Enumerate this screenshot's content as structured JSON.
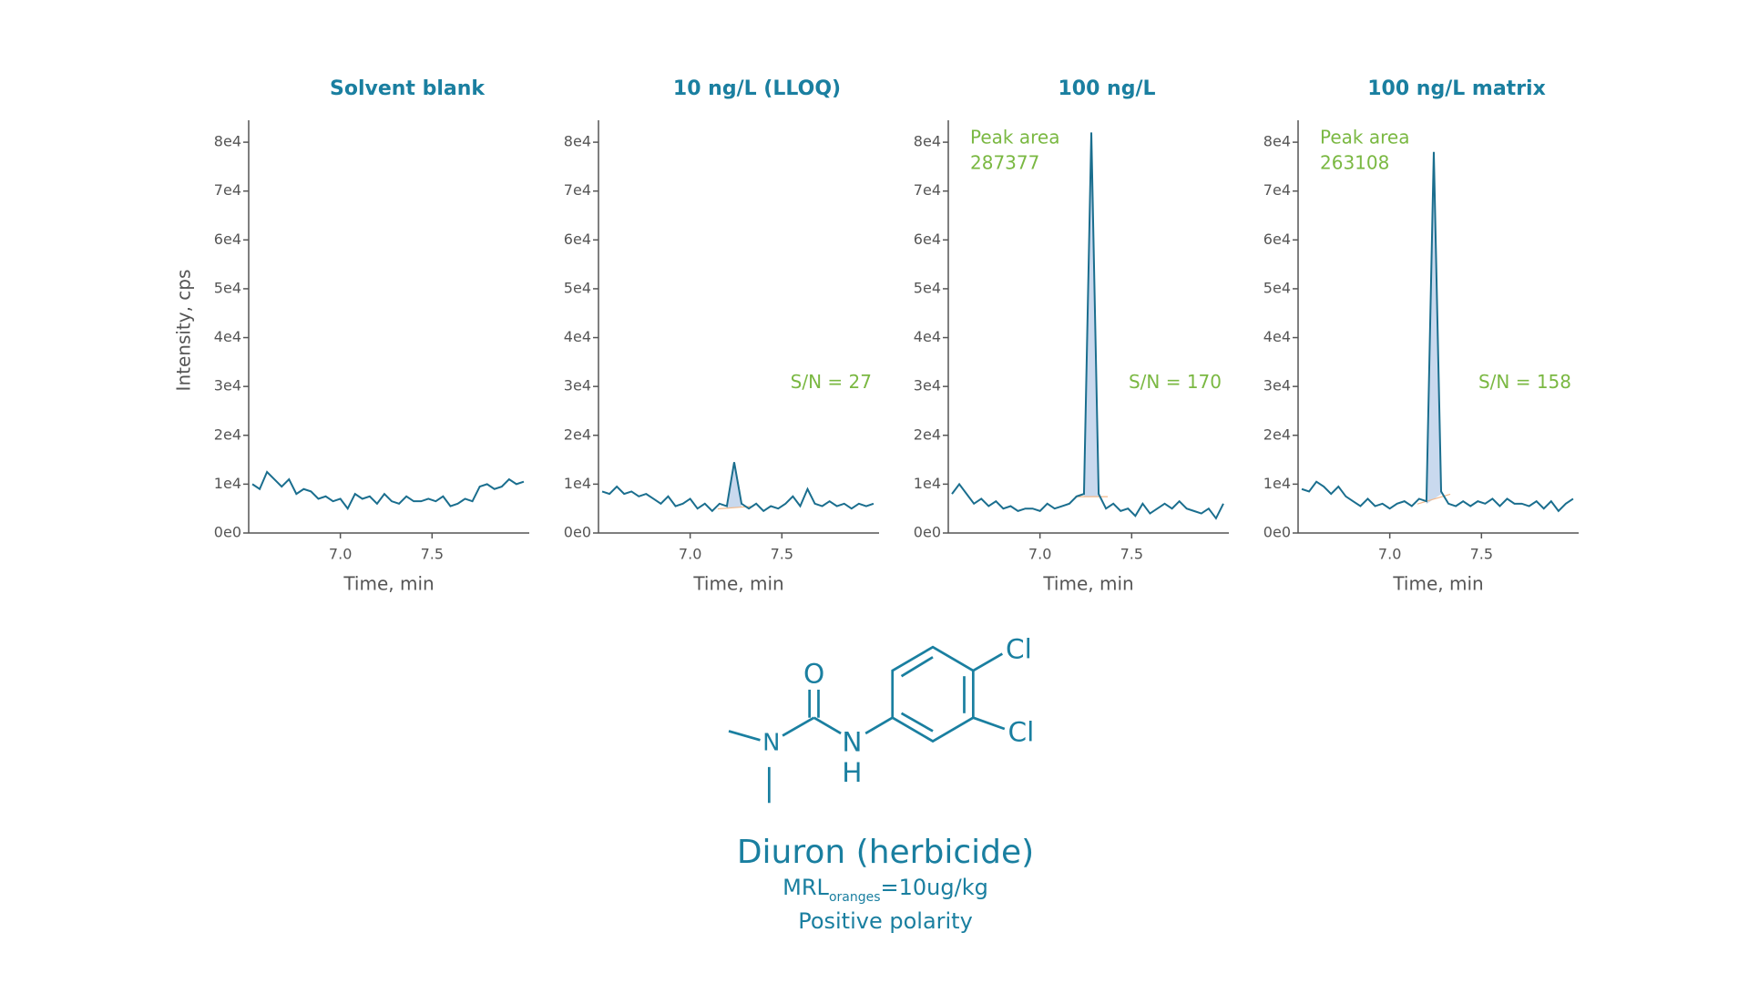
{
  "chart_data": [
    {
      "type": "line",
      "title": "Solvent blank",
      "color": "#1a6e8e",
      "xlabel": "Time, min",
      "ylabel": "Intensity, cps",
      "x": [
        6.52,
        6.56,
        6.6,
        6.64,
        6.68,
        6.72,
        6.76,
        6.8,
        6.84,
        6.88,
        6.92,
        6.96,
        7.0,
        7.04,
        7.08,
        7.12,
        7.16,
        7.2,
        7.24,
        7.28,
        7.32,
        7.36,
        7.4,
        7.44,
        7.48,
        7.52,
        7.56,
        7.6,
        7.64,
        7.68,
        7.72,
        7.76,
        7.8,
        7.84,
        7.88,
        7.92,
        7.96,
        8.0
      ],
      "values": [
        10000,
        9000,
        12500,
        11000,
        9500,
        11000,
        8000,
        9000,
        8500,
        7000,
        7500,
        6500,
        7000,
        5000,
        8000,
        7000,
        7500,
        6000,
        8000,
        6500,
        6000,
        7500,
        6500,
        6500,
        7000,
        6500,
        7500,
        5500,
        6000,
        7000,
        6500,
        9500,
        10000,
        9000,
        9500,
        11000,
        10000,
        10500
      ],
      "xlim": [
        6.5,
        8.03
      ],
      "ylim": [
        0,
        83000
      ],
      "xticks": [
        {
          "value": 7,
          "label": "7.0"
        },
        7.5
      ],
      "yticks": [
        {
          "value": 0,
          "label": "0e0"
        },
        {
          "value": 10000,
          "label": "1e4"
        },
        {
          "value": 20000,
          "label": "2e4"
        },
        {
          "value": 30000,
          "label": "3e4"
        },
        {
          "value": 40000,
          "label": "4e4"
        },
        {
          "value": 50000,
          "label": "5e4"
        },
        {
          "value": 60000,
          "label": "6e4"
        },
        {
          "value": 70000,
          "label": "7e4"
        },
        {
          "value": 80000,
          "label": "8e4"
        }
      ]
    },
    {
      "type": "line",
      "title": "10 ng/L (LLOQ)",
      "color": "#1a6e8e",
      "xlabel": "Time, min",
      "peak_shading": true,
      "sn_label": "S/N = 27",
      "x": [
        6.52,
        6.56,
        6.6,
        6.64,
        6.68,
        6.72,
        6.76,
        6.8,
        6.84,
        6.88,
        6.92,
        6.96,
        7.0,
        7.04,
        7.08,
        7.12,
        7.16,
        7.2,
        7.24,
        7.28,
        7.32,
        7.36,
        7.4,
        7.44,
        7.48,
        7.52,
        7.56,
        7.6,
        7.64,
        7.68,
        7.72,
        7.76,
        7.8,
        7.84,
        7.88,
        7.92,
        7.96,
        8.0
      ],
      "values": [
        8500,
        8000,
        9500,
        8000,
        8500,
        7500,
        8000,
        7000,
        6000,
        7500,
        5500,
        6000,
        7000,
        5000,
        6000,
        4500,
        6000,
        5500,
        14500,
        6000,
        5000,
        6000,
        4500,
        5500,
        5000,
        6000,
        7500,
        5500,
        9000,
        6000,
        5500,
        6500,
        5500,
        6000,
        5000,
        6000,
        5500,
        6000
      ],
      "xlim": [
        6.5,
        8.03
      ],
      "ylim": [
        0,
        83000
      ],
      "xticks": [
        {
          "value": 7,
          "label": "7.0"
        },
        7.5
      ],
      "yticks": [
        {
          "value": 0,
          "label": "0e0"
        },
        {
          "value": 10000,
          "label": "1e4"
        },
        {
          "value": 20000,
          "label": "2e4"
        },
        {
          "value": 30000,
          "label": "3e4"
        },
        {
          "value": 40000,
          "label": "4e4"
        },
        {
          "value": 50000,
          "label": "5e4"
        },
        {
          "value": 60000,
          "label": "6e4"
        },
        {
          "value": 70000,
          "label": "7e4"
        },
        {
          "value": 80000,
          "label": "8e4"
        }
      ]
    },
    {
      "type": "line",
      "title": "100 ng/L",
      "color": "#1a6e8e",
      "xlabel": "Time, min",
      "peak_shading": true,
      "sn_label": "S/N = 170",
      "peak_area_label": "Peak area",
      "peak_area": 287377,
      "x": [
        6.52,
        6.56,
        6.6,
        6.64,
        6.68,
        6.72,
        6.76,
        6.8,
        6.84,
        6.88,
        6.92,
        6.96,
        7.0,
        7.04,
        7.08,
        7.12,
        7.16,
        7.2,
        7.24,
        7.28,
        7.32,
        7.36,
        7.4,
        7.44,
        7.48,
        7.52,
        7.56,
        7.6,
        7.64,
        7.68,
        7.72,
        7.76,
        7.8,
        7.84,
        7.88,
        7.92,
        7.96,
        8.0
      ],
      "values": [
        8000,
        10000,
        8000,
        6000,
        7000,
        5500,
        6500,
        5000,
        5500,
        4500,
        5000,
        5000,
        4500,
        6000,
        5000,
        5500,
        6000,
        7500,
        8000,
        82000,
        8000,
        5000,
        6000,
        4500,
        5000,
        3500,
        6000,
        4000,
        5000,
        6000,
        5000,
        6500,
        5000,
        4500,
        4000,
        5000,
        3000,
        6000
      ],
      "xlim": [
        6.5,
        8.03
      ],
      "ylim": [
        0,
        83000
      ],
      "xticks": [
        {
          "value": 7,
          "label": "7.0"
        },
        7.5
      ],
      "yticks": [
        {
          "value": 0,
          "label": "0e0"
        },
        {
          "value": 10000,
          "label": "1e4"
        },
        {
          "value": 20000,
          "label": "2e4"
        },
        {
          "value": 30000,
          "label": "3e4"
        },
        {
          "value": 40000,
          "label": "4e4"
        },
        {
          "value": 50000,
          "label": "5e4"
        },
        {
          "value": 60000,
          "label": "6e4"
        },
        {
          "value": 70000,
          "label": "7e4"
        },
        {
          "value": 80000,
          "label": "8e4"
        }
      ]
    },
    {
      "type": "line",
      "title": "100 ng/L matrix",
      "color": "#1a6e8e",
      "xlabel": "Time, min",
      "peak_shading": true,
      "sn_label": "S/N = 158",
      "peak_area_label": "Peak area",
      "peak_area": 263108,
      "x": [
        6.52,
        6.56,
        6.6,
        6.64,
        6.68,
        6.72,
        6.76,
        6.8,
        6.84,
        6.88,
        6.92,
        6.96,
        7.0,
        7.04,
        7.08,
        7.12,
        7.16,
        7.2,
        7.24,
        7.28,
        7.32,
        7.36,
        7.4,
        7.44,
        7.48,
        7.52,
        7.56,
        7.6,
        7.64,
        7.68,
        7.72,
        7.76,
        7.8,
        7.84,
        7.88,
        7.92,
        7.96,
        8.0
      ],
      "values": [
        9000,
        8500,
        10500,
        9500,
        8000,
        9500,
        7500,
        6500,
        5500,
        7000,
        5500,
        6000,
        5000,
        6000,
        6500,
        5500,
        7000,
        6500,
        78000,
        8500,
        6000,
        5500,
        6500,
        5500,
        6500,
        6000,
        7000,
        5500,
        7000,
        6000,
        6000,
        5500,
        6500,
        5000,
        6500,
        4500,
        6000,
        7000
      ],
      "xlim": [
        6.5,
        8.03
      ],
      "ylim": [
        0,
        83000
      ],
      "xticks": [
        {
          "value": 7,
          "label": "7.0"
        },
        7.5
      ],
      "yticks": [
        {
          "value": 0,
          "label": "0e0"
        },
        {
          "value": 10000,
          "label": "1e4"
        },
        {
          "value": 20000,
          "label": "2e4"
        },
        {
          "value": 30000,
          "label": "3e4"
        },
        {
          "value": 40000,
          "label": "4e4"
        },
        {
          "value": 50000,
          "label": "5e4"
        },
        {
          "value": 60000,
          "label": "6e4"
        },
        {
          "value": 70000,
          "label": "7e4"
        },
        {
          "value": 80000,
          "label": "8e4"
        }
      ]
    }
  ],
  "molecule": {
    "atoms": [
      "O",
      "N",
      "N",
      "H",
      "Cl",
      "Cl"
    ]
  },
  "caption": {
    "name": "Diuron (herbicide)",
    "mrl": "MRL",
    "mrl_sub": "oranges",
    "mrl_value": "=10ug/kg",
    "polarity": "Positive polarity"
  }
}
